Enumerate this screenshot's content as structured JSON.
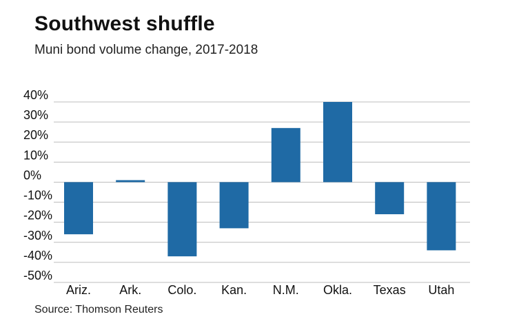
{
  "header": {
    "title": "Southwest shuffle",
    "subtitle": "Muni bond volume change, 2017-2018"
  },
  "footer": {
    "source": "Source: Thomson Reuters"
  },
  "colors": {
    "bar": "#1f6aa5",
    "grid": "#bcbcbc",
    "text": "#111111"
  },
  "chart_data": {
    "type": "bar",
    "title": "Southwest shuffle",
    "subtitle": "Muni bond volume change, 2017-2018",
    "categories": [
      "Ariz.",
      "Ark.",
      "Colo.",
      "Kan.",
      "N.M.",
      "Okla.",
      "Texas",
      "Utah"
    ],
    "values": [
      -26,
      1,
      -37,
      -23,
      27,
      40,
      -16,
      -34
    ],
    "unit": "%",
    "xlabel": "",
    "ylabel": "",
    "ylim": [
      -50,
      40
    ],
    "yticks": [
      40,
      30,
      20,
      10,
      0,
      -10,
      -20,
      -30,
      -40,
      -50
    ],
    "ytick_labels": [
      "40%",
      "30%",
      "20%",
      "10%",
      "0%",
      "-10%",
      "-20%",
      "-30%",
      "-40%",
      "-50%"
    ],
    "grid": true,
    "legend": "none"
  }
}
